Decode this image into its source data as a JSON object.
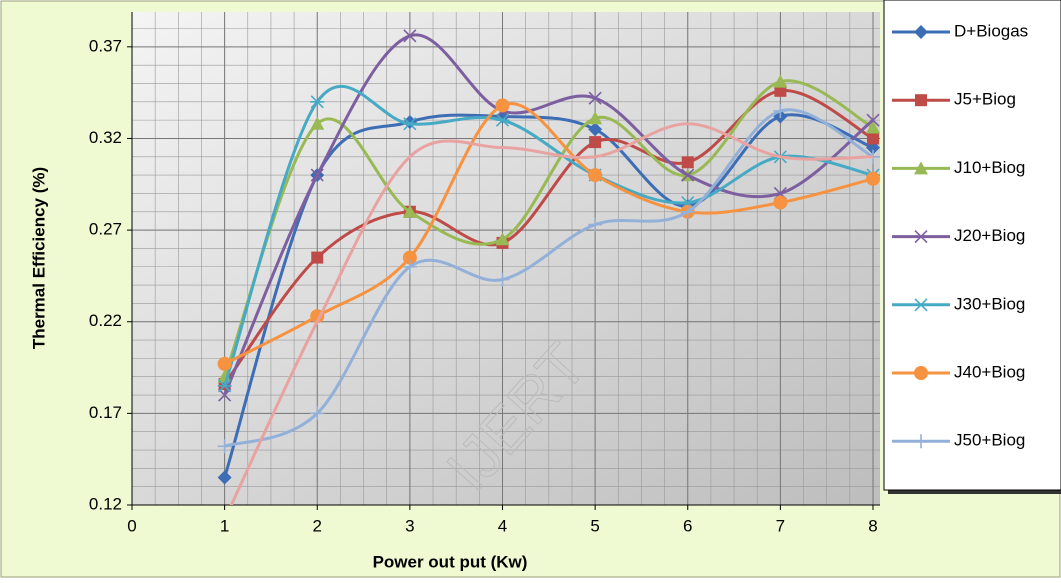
{
  "chart_data": {
    "type": "line",
    "x_label": "Power out put (Kw)",
    "y_label": "Thermal Efficiency (%)",
    "watermark": "IJERT",
    "x": [
      1,
      2,
      3,
      4,
      5,
      6,
      7,
      8
    ],
    "xlim": [
      0,
      8
    ],
    "xticks": [
      0,
      1,
      2,
      3,
      4,
      5,
      6,
      7,
      8
    ],
    "ylim": [
      0.12,
      0.389
    ],
    "yticks": [
      0.12,
      0.17,
      0.22,
      0.27,
      0.32,
      0.37
    ],
    "grid": true,
    "smooth": true,
    "legend": "right",
    "series": [
      {
        "name": "D+Biogas",
        "color": "#3d6db5",
        "marker": "diamond",
        "values": [
          0.135,
          0.3,
          0.329,
          0.332,
          0.325,
          0.283,
          0.332,
          0.315
        ]
      },
      {
        "name": "J5+Biog",
        "color": "#be4b48",
        "marker": "square",
        "values": [
          0.186,
          0.255,
          0.28,
          0.263,
          0.318,
          0.307,
          0.346,
          0.32
        ]
      },
      {
        "name": "J10+Biog",
        "color": "#98b954",
        "marker": "triangle",
        "values": [
          0.19,
          0.328,
          0.28,
          0.265,
          0.331,
          0.3,
          0.351,
          0.326
        ]
      },
      {
        "name": "J20+Biog",
        "color": "#7d5fa0",
        "marker": "x",
        "values": [
          0.18,
          0.3,
          0.376,
          0.335,
          0.342,
          0.3,
          0.29,
          0.33
        ]
      },
      {
        "name": "J30+Biog",
        "color": "#46aac4",
        "marker": "star",
        "values": [
          0.185,
          0.34,
          0.328,
          0.33,
          0.3,
          0.285,
          0.31,
          0.3
        ]
      },
      {
        "name": "J40+Biog",
        "color": "#f69240",
        "marker": "circle",
        "values": [
          0.197,
          0.223,
          0.255,
          0.338,
          0.3,
          0.28,
          0.285,
          0.298
        ]
      },
      {
        "name": "J50+Biog",
        "color": "#93b1d8",
        "marker": "plus",
        "values": [
          0.152,
          0.17,
          0.25,
          0.243,
          0.273,
          0.28,
          0.335,
          0.31
        ]
      },
      {
        "color": "#e8a3a1",
        "marker": "none",
        "values": [
          0.112,
          0.22,
          0.31,
          0.315,
          0.31,
          0.328,
          0.31,
          0.31
        ]
      }
    ]
  }
}
